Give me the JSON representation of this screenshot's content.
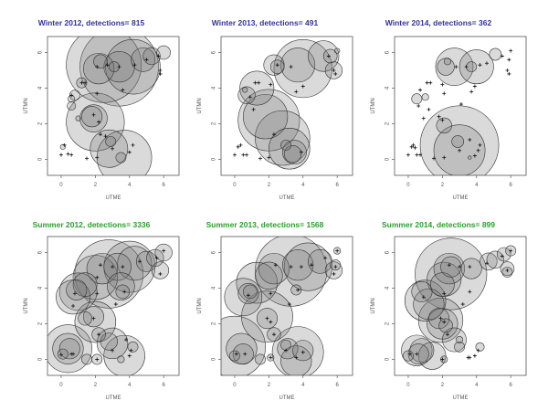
{
  "figure": {
    "xlabel": "UTME",
    "ylabel": "UTMN",
    "colors": {
      "winter_title": "#333399",
      "summer_title": "#2aa02a",
      "circle_fill": "#7a7a7a",
      "circle_stroke": "#333333",
      "axis": "#555555"
    }
  },
  "chart_data": [
    {
      "type": "scatter",
      "title": "Winter 2012, detections= 815",
      "season": "winter",
      "xlabel": "UTME",
      "ylabel": "UTMN",
      "xticks": [
        0,
        2,
        4,
        6
      ],
      "yticks": [
        0,
        2,
        4,
        6
      ],
      "xlim": [
        -0.8,
        6.9
      ],
      "ylim": [
        -0.9,
        6.9
      ],
      "circles": [
        [
          3.4,
          5.2,
          2.3
        ],
        [
          2.5,
          5.3,
          2.2
        ],
        [
          4.2,
          5.2,
          1.6
        ],
        [
          3.4,
          5.2,
          0.9
        ],
        [
          2.2,
          5.1,
          0.9
        ],
        [
          2.3,
          5.5,
          0.4
        ],
        [
          3.1,
          5.2,
          0.3
        ],
        [
          4.8,
          5.6,
          0.7
        ],
        [
          5.3,
          5.8,
          0.5
        ],
        [
          6.0,
          6.0,
          0.4
        ],
        [
          1.2,
          4.3,
          0.3
        ],
        [
          0.8,
          3.6,
          0.3
        ],
        [
          0.6,
          3.4,
          0.2
        ],
        [
          0.6,
          3.0,
          0.25
        ],
        [
          2.0,
          2.1,
          1.7
        ],
        [
          1.9,
          2.3,
          0.8
        ],
        [
          1.8,
          2.4,
          0.6
        ],
        [
          1.0,
          2.3,
          0.15
        ],
        [
          3.7,
          0.1,
          1.6
        ],
        [
          2.8,
          0.6,
          1.1
        ],
        [
          2.9,
          1.0,
          0.3
        ],
        [
          3.5,
          0.1,
          0.3
        ],
        [
          0.1,
          0.7,
          0.15
        ]
      ],
      "points": [
        [
          0.0,
          0.25
        ],
        [
          0.2,
          0.8
        ],
        [
          0.4,
          0.3
        ],
        [
          0.6,
          0.25
        ],
        [
          1.5,
          0.05
        ],
        [
          2.1,
          0.1
        ],
        [
          3.0,
          0.6
        ],
        [
          4.0,
          0.4
        ],
        [
          4.2,
          0.8
        ],
        [
          2.3,
          1.4
        ],
        [
          2.6,
          1.3
        ],
        [
          1.2,
          4.3
        ],
        [
          1.4,
          4.3
        ],
        [
          2.1,
          5.2
        ],
        [
          2.7,
          5.3
        ],
        [
          3.4,
          5.2
        ],
        [
          4.3,
          5.3
        ],
        [
          5.0,
          5.6
        ],
        [
          5.7,
          5.8
        ],
        [
          5.8,
          5.0
        ],
        [
          5.8,
          4.8
        ],
        [
          1.9,
          2.5
        ],
        [
          2.2,
          2.1
        ],
        [
          0.6,
          3.6
        ],
        [
          3.6,
          3.9
        ],
        [
          2.1,
          3.7
        ]
      ]
    },
    {
      "type": "scatter",
      "title": "Winter 2013, detections= 491",
      "season": "winter",
      "xlabel": "UTME",
      "ylabel": "UTMN",
      "xticks": [
        0,
        2,
        4,
        6
      ],
      "yticks": [
        0,
        2,
        4,
        6
      ],
      "xlim": [
        -0.8,
        6.9
      ],
      "ylim": [
        -0.9,
        6.9
      ],
      "circles": [
        [
          4.0,
          5.1,
          1.7
        ],
        [
          5.2,
          5.8,
          0.9
        ],
        [
          3.7,
          5.3,
          1.0
        ],
        [
          2.3,
          5.3,
          0.6
        ],
        [
          2.5,
          5.2,
          0.4
        ],
        [
          5.6,
          5.8,
          0.4
        ],
        [
          6.0,
          6.1,
          0.15
        ],
        [
          5.8,
          5.0,
          0.5
        ],
        [
          1.3,
          4.0,
          1.0
        ],
        [
          0.7,
          3.6,
          0.5
        ],
        [
          0.6,
          3.9,
          0.15
        ],
        [
          2.0,
          2.2,
          1.8
        ],
        [
          1.8,
          2.4,
          1.3
        ],
        [
          3.2,
          0.6,
          1.2
        ],
        [
          2.8,
          1.2,
          1.6
        ],
        [
          3.5,
          0.4,
          0.7
        ],
        [
          3.4,
          0.3,
          0.5
        ],
        [
          3.0,
          0.8,
          0.3
        ]
      ],
      "points": [
        [
          0.0,
          0.25
        ],
        [
          0.2,
          0.7
        ],
        [
          0.35,
          0.8
        ],
        [
          0.5,
          0.25
        ],
        [
          0.7,
          0.25
        ],
        [
          1.5,
          0.05
        ],
        [
          2.0,
          0.1
        ],
        [
          3.9,
          0.4
        ],
        [
          1.2,
          4.3
        ],
        [
          1.4,
          4.3
        ],
        [
          2.1,
          4.2
        ],
        [
          2.5,
          5.3
        ],
        [
          3.3,
          5.2
        ],
        [
          4.0,
          4.1
        ],
        [
          3.6,
          3.8
        ],
        [
          5.8,
          5.0
        ],
        [
          5.9,
          4.8
        ],
        [
          5.5,
          5.8
        ],
        [
          1.1,
          2.8
        ],
        [
          2.3,
          1.4
        ],
        [
          0.9,
          3.5
        ]
      ]
    },
    {
      "type": "scatter",
      "title": "Winter 2014, detections= 362",
      "season": "winter",
      "xlabel": "UTME",
      "ylabel": "UTMN",
      "xticks": [
        0,
        2,
        4,
        6
      ],
      "yticks": [
        0,
        2,
        4,
        6
      ],
      "xlim": [
        -0.8,
        6.9
      ],
      "ylim": [
        -0.9,
        6.9
      ],
      "circles": [
        [
          2.7,
          5.2,
          1.1
        ],
        [
          4.0,
          5.2,
          1.0
        ],
        [
          2.2,
          5.2,
          0.5
        ],
        [
          3.7,
          5.2,
          0.3
        ],
        [
          5.1,
          5.9,
          0.35
        ],
        [
          2.3,
          5.5,
          0.2
        ],
        [
          0.5,
          3.4,
          0.3
        ],
        [
          1.0,
          3.5,
          0.2
        ],
        [
          2.1,
          1.9,
          0.45
        ],
        [
          3.0,
          0.8,
          2.3
        ],
        [
          3.0,
          0.5,
          1.5
        ],
        [
          2.9,
          1.0,
          0.35
        ],
        [
          3.6,
          0.1,
          0.1
        ]
      ],
      "points": [
        [
          0.0,
          0.25
        ],
        [
          0.2,
          0.7
        ],
        [
          0.3,
          0.8
        ],
        [
          0.4,
          0.65
        ],
        [
          0.5,
          0.25
        ],
        [
          0.7,
          0.25
        ],
        [
          1.5,
          0.05
        ],
        [
          2.1,
          0.1
        ],
        [
          3.0,
          0.5
        ],
        [
          3.6,
          1.1
        ],
        [
          4.1,
          0.5
        ],
        [
          4.2,
          0.8
        ],
        [
          3.9,
          0.2
        ],
        [
          0.9,
          2.3
        ],
        [
          1.2,
          2.8
        ],
        [
          1.8,
          2.4
        ],
        [
          2.0,
          2.2
        ],
        [
          0.6,
          3.0
        ],
        [
          0.7,
          3.9
        ],
        [
          1.1,
          4.3
        ],
        [
          1.3,
          4.3
        ],
        [
          2.0,
          4.2
        ],
        [
          2.1,
          3.7
        ],
        [
          3.1,
          3.1
        ],
        [
          3.7,
          3.8
        ],
        [
          3.9,
          4.1
        ],
        [
          2.8,
          5.2
        ],
        [
          3.4,
          5.2
        ],
        [
          4.2,
          5.3
        ],
        [
          4.6,
          5.4
        ],
        [
          5.5,
          5.8
        ],
        [
          6.0,
          6.1
        ],
        [
          5.9,
          5.6
        ],
        [
          5.8,
          5.0
        ],
        [
          5.9,
          4.8
        ]
      ]
    },
    {
      "type": "scatter",
      "title": "Summer 2012, detections= 3336",
      "season": "summer",
      "xlabel": "UTME",
      "ylabel": "UTMN",
      "xticks": [
        0,
        2,
        4,
        6
      ],
      "yticks": [
        0,
        2,
        4,
        6
      ],
      "xlim": [
        -0.8,
        6.9
      ],
      "ylim": [
        -0.9,
        6.9
      ],
      "circles": [
        [
          2.8,
          4.8,
          2.0
        ],
        [
          4.0,
          5.2,
          1.5
        ],
        [
          2.0,
          4.6,
          1.3
        ],
        [
          2.4,
          5.1,
          0.9
        ],
        [
          3.3,
          5.2,
          0.8
        ],
        [
          4.3,
          5.4,
          1.0
        ],
        [
          5.0,
          5.5,
          0.6
        ],
        [
          5.5,
          5.7,
          0.5
        ],
        [
          6.0,
          6.0,
          0.5
        ],
        [
          5.8,
          5.0,
          0.5
        ],
        [
          1.0,
          3.8,
          1.1
        ],
        [
          0.7,
          3.5,
          1.0
        ],
        [
          0.9,
          3.9,
          0.6
        ],
        [
          1.4,
          4.2,
          0.7
        ],
        [
          3.5,
          4.1,
          0.8
        ],
        [
          3.6,
          3.8,
          0.4
        ],
        [
          2.0,
          2.1,
          1.2
        ],
        [
          1.9,
          2.4,
          0.6
        ],
        [
          1.4,
          2.3,
          0.4
        ],
        [
          0.4,
          0.6,
          1.4
        ],
        [
          0.4,
          0.6,
          0.9
        ],
        [
          0.5,
          0.6,
          0.6
        ],
        [
          0.1,
          0.3,
          0.3
        ],
        [
          1.5,
          0.0,
          0.3
        ],
        [
          2.1,
          0.0,
          0.3
        ],
        [
          3.7,
          0.2,
          1.2
        ],
        [
          3.0,
          0.9,
          0.9
        ],
        [
          2.8,
          1.0,
          0.5
        ],
        [
          3.5,
          0.0,
          0.2
        ],
        [
          4.2,
          0.7,
          0.3
        ],
        [
          2.2,
          1.4,
          0.4
        ]
      ],
      "points": [
        [
          0.0,
          0.25
        ],
        [
          0.6,
          0.3
        ],
        [
          0.7,
          0.3
        ],
        [
          2.1,
          0.0
        ],
        [
          3.0,
          0.5
        ],
        [
          4.0,
          0.2
        ],
        [
          4.1,
          0.5
        ],
        [
          3.8,
          1.1
        ],
        [
          2.2,
          1.4
        ],
        [
          1.9,
          2.3
        ],
        [
          0.8,
          3.7
        ],
        [
          0.7,
          3.0
        ],
        [
          2.1,
          3.7
        ],
        [
          3.2,
          3.1
        ],
        [
          3.7,
          3.8
        ],
        [
          2.1,
          4.6
        ],
        [
          2.3,
          5.3
        ],
        [
          3.0,
          5.2
        ],
        [
          3.6,
          5.2
        ],
        [
          4.6,
          5.5
        ],
        [
          5.6,
          5.7
        ],
        [
          5.8,
          4.8
        ],
        [
          6.0,
          6.1
        ]
      ]
    },
    {
      "type": "scatter",
      "title": "Summer 2013, detections= 1568",
      "season": "summer",
      "xlabel": "UTME",
      "ylabel": "UTMN",
      "xticks": [
        0,
        2,
        4,
        6
      ],
      "yticks": [
        0,
        2,
        4,
        6
      ],
      "xlim": [
        -0.8,
        6.9
      ],
      "ylim": [
        -0.9,
        6.9
      ],
      "circles": [
        [
          3.3,
          5.0,
          2.1
        ],
        [
          4.3,
          5.2,
          1.4
        ],
        [
          2.3,
          5.1,
          0.9
        ],
        [
          3.7,
          5.3,
          0.9
        ],
        [
          5.0,
          5.5,
          0.7
        ],
        [
          5.8,
          5.0,
          0.5
        ],
        [
          5.9,
          5.3,
          0.3
        ],
        [
          6.0,
          6.1,
          0.2
        ],
        [
          1.3,
          4.3,
          1.2
        ],
        [
          0.5,
          3.5,
          1.1
        ],
        [
          0.8,
          3.7,
          0.6
        ],
        [
          0.9,
          3.8,
          0.4
        ],
        [
          2.0,
          4.7,
          0.8
        ],
        [
          3.6,
          3.9,
          0.3
        ],
        [
          1.9,
          2.4,
          1.5
        ],
        [
          1.9,
          2.3,
          0.6
        ],
        [
          2.3,
          1.4,
          0.4
        ],
        [
          0.0,
          0.7,
          1.8
        ],
        [
          0.4,
          0.6,
          0.9
        ],
        [
          0.5,
          0.3,
          0.6
        ],
        [
          0.0,
          0.2,
          0.3
        ],
        [
          1.5,
          0.0,
          0.3
        ],
        [
          2.1,
          0.1,
          0.2
        ],
        [
          3.7,
          0.4,
          1.5
        ],
        [
          3.6,
          -0.1,
          0.9
        ],
        [
          3.1,
          0.6,
          0.6
        ],
        [
          3.0,
          0.8,
          0.3
        ],
        [
          4.0,
          0.5,
          0.6
        ]
      ],
      "points": [
        [
          0.1,
          0.3
        ],
        [
          0.6,
          0.3
        ],
        [
          2.1,
          0.1
        ],
        [
          3.0,
          0.5
        ],
        [
          4.0,
          0.4
        ],
        [
          3.6,
          0.1
        ],
        [
          2.3,
          1.4
        ],
        [
          1.9,
          2.3
        ],
        [
          2.1,
          2.1
        ],
        [
          0.8,
          3.6
        ],
        [
          2.1,
          3.7
        ],
        [
          3.2,
          3.1
        ],
        [
          3.7,
          3.9
        ],
        [
          2.4,
          5.3
        ],
        [
          3.3,
          5.2
        ],
        [
          3.9,
          5.2
        ],
        [
          4.5,
          5.3
        ],
        [
          5.3,
          5.7
        ],
        [
          5.9,
          5.2
        ],
        [
          5.8,
          4.8
        ],
        [
          6.0,
          6.1
        ]
      ]
    },
    {
      "type": "scatter",
      "title": "Summer 2014, detections= 899",
      "season": "summer",
      "xlabel": "UTME",
      "ylabel": "UTMN",
      "xticks": [
        0,
        2,
        4,
        6
      ],
      "yticks": [
        0,
        2,
        4,
        6
      ],
      "xlim": [
        -0.8,
        6.9
      ],
      "ylim": [
        -0.9,
        6.9
      ],
      "circles": [
        [
          2.5,
          4.8,
          2.1
        ],
        [
          2.4,
          5.1,
          0.9
        ],
        [
          2.5,
          5.2,
          0.6
        ],
        [
          3.7,
          5.1,
          0.6
        ],
        [
          4.7,
          5.5,
          0.5
        ],
        [
          5.1,
          5.6,
          0.5
        ],
        [
          5.6,
          5.9,
          0.4
        ],
        [
          6.0,
          6.1,
          0.3
        ],
        [
          5.8,
          5.1,
          0.4
        ],
        [
          5.8,
          4.9,
          0.3
        ],
        [
          2.1,
          4.5,
          1.0
        ],
        [
          2.0,
          4.2,
          0.7
        ],
        [
          1.0,
          3.3,
          1.2
        ],
        [
          0.8,
          3.8,
          0.6
        ],
        [
          1.2,
          3.1,
          0.9
        ],
        [
          1.9,
          2.2,
          1.3
        ],
        [
          2.0,
          2.0,
          0.9
        ],
        [
          1.8,
          2.3,
          0.6
        ],
        [
          2.2,
          1.9,
          0.4
        ],
        [
          2.7,
          1.1,
          0.7
        ],
        [
          3.0,
          0.7,
          0.3
        ],
        [
          3.0,
          1.1,
          0.2
        ],
        [
          4.2,
          0.7,
          0.25
        ],
        [
          0.5,
          0.5,
          0.9
        ],
        [
          0.6,
          0.3,
          0.6
        ],
        [
          0.0,
          0.2,
          0.3
        ],
        [
          1.4,
          0.2,
          0.8
        ],
        [
          0.8,
          0.5,
          0.7
        ],
        [
          2.1,
          0.0,
          0.2
        ]
      ],
      "points": [
        [
          0.1,
          0.3
        ],
        [
          0.5,
          0.3
        ],
        [
          2.0,
          0.0
        ],
        [
          3.5,
          0.1
        ],
        [
          3.6,
          0.1
        ],
        [
          3.9,
          0.2
        ],
        [
          4.1,
          0.5
        ],
        [
          2.3,
          1.4
        ],
        [
          1.9,
          2.3
        ],
        [
          2.1,
          2.1
        ],
        [
          0.9,
          3.5
        ],
        [
          2.1,
          3.7
        ],
        [
          3.2,
          3.1
        ],
        [
          3.6,
          3.8
        ],
        [
          2.4,
          5.3
        ],
        [
          3.0,
          5.2
        ],
        [
          3.6,
          5.2
        ],
        [
          4.6,
          5.4
        ],
        [
          5.5,
          5.8
        ],
        [
          5.8,
          5.0
        ],
        [
          6.0,
          6.1
        ]
      ]
    }
  ]
}
